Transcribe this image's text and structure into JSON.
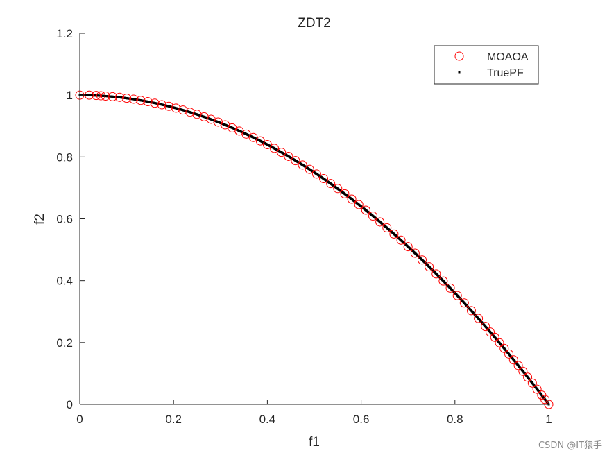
{
  "chart_data": {
    "type": "scatter",
    "title": "ZDT2",
    "xlabel": "f1",
    "ylabel": "f2",
    "xlim": [
      0,
      1
    ],
    "ylim": [
      0,
      1.2
    ],
    "xticks": [
      {
        "value": 0,
        "label": "0"
      },
      {
        "value": 0.2,
        "label": "0.2"
      },
      {
        "value": 0.4,
        "label": "0.4"
      },
      {
        "value": 0.6,
        "label": "0.6"
      },
      {
        "value": 0.8,
        "label": "0.8"
      },
      {
        "value": 1,
        "label": "1"
      }
    ],
    "yticks": [
      {
        "value": 0,
        "label": "0"
      },
      {
        "value": 0.2,
        "label": "0.2"
      },
      {
        "value": 0.4,
        "label": "0.4"
      },
      {
        "value": 0.6,
        "label": "0.6"
      },
      {
        "value": 0.8,
        "label": "0.8"
      },
      {
        "value": 1,
        "label": "1"
      },
      {
        "value": 1.2,
        "label": "1.2"
      }
    ],
    "grid": false,
    "legend_position": "top-right",
    "series": [
      {
        "name": "MOAOA",
        "marker": "open-circle",
        "color": "#ff0000",
        "x": [
          0,
          0.02,
          0.035,
          0.045,
          0.055,
          0.07,
          0.085,
          0.1,
          0.115,
          0.13,
          0.145,
          0.16,
          0.175,
          0.19,
          0.205,
          0.22,
          0.235,
          0.25,
          0.265,
          0.28,
          0.295,
          0.31,
          0.325,
          0.34,
          0.355,
          0.37,
          0.385,
          0.4,
          0.415,
          0.43,
          0.445,
          0.46,
          0.475,
          0.49,
          0.505,
          0.52,
          0.535,
          0.55,
          0.565,
          0.58,
          0.595,
          0.61,
          0.625,
          0.64,
          0.655,
          0.67,
          0.685,
          0.7,
          0.715,
          0.73,
          0.745,
          0.76,
          0.775,
          0.79,
          0.805,
          0.82,
          0.835,
          0.85,
          0.865,
          0.875,
          0.885,
          0.895,
          0.905,
          0.915,
          0.925,
          0.935,
          0.945,
          0.955,
          0.965,
          0.975,
          0.985,
          0.992,
          1
        ],
        "y": [
          1,
          1,
          0.999,
          0.998,
          0.997,
          0.995,
          0.993,
          0.99,
          0.987,
          0.983,
          0.979,
          0.974,
          0.969,
          0.964,
          0.958,
          0.952,
          0.945,
          0.938,
          0.93,
          0.922,
          0.913,
          0.904,
          0.894,
          0.884,
          0.874,
          0.863,
          0.852,
          0.84,
          0.828,
          0.815,
          0.802,
          0.788,
          0.774,
          0.76,
          0.745,
          0.73,
          0.714,
          0.698,
          0.681,
          0.664,
          0.646,
          0.628,
          0.609,
          0.59,
          0.571,
          0.551,
          0.531,
          0.51,
          0.489,
          0.467,
          0.445,
          0.422,
          0.399,
          0.376,
          0.352,
          0.328,
          0.303,
          0.278,
          0.252,
          0.234,
          0.217,
          0.199,
          0.181,
          0.163,
          0.144,
          0.126,
          0.107,
          0.088,
          0.069,
          0.049,
          0.03,
          0.016,
          0
        ]
      },
      {
        "name": "TruePF",
        "marker": "dot",
        "color": "#000000",
        "function": "f2 = 1 - f1^2",
        "x_range": [
          0,
          1
        ],
        "points": 1000
      }
    ]
  },
  "watermark": "CSDN @IT猿手"
}
